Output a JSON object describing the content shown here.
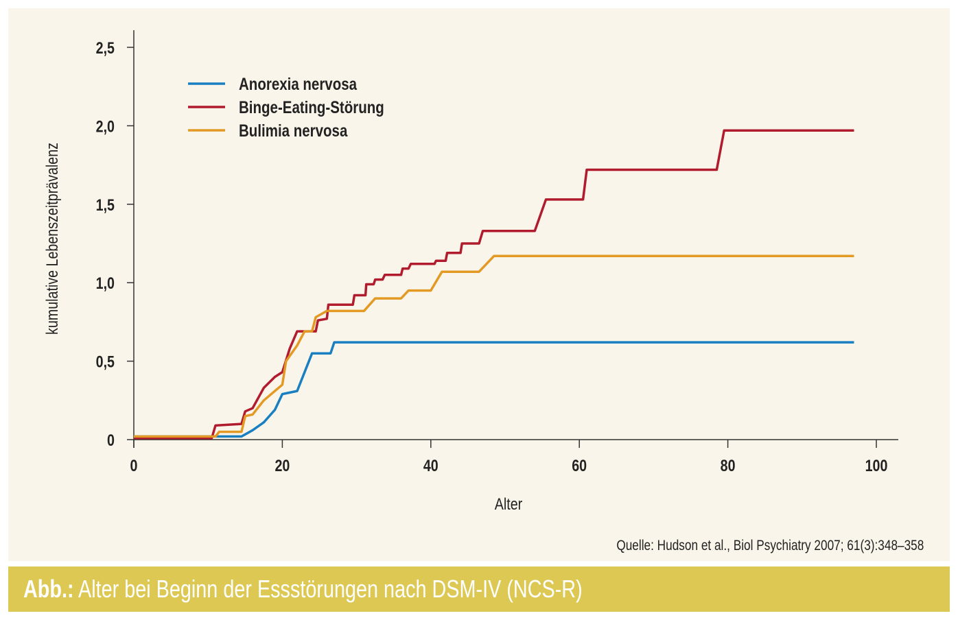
{
  "chart_data": {
    "type": "line",
    "title": "",
    "xlabel": "Alter",
    "ylabel": "kumulative Lebenszeitprävalenz",
    "xlim": [
      0,
      100
    ],
    "ylim": [
      0,
      2.5
    ],
    "x_ticks": [
      0,
      20,
      40,
      60,
      80,
      100
    ],
    "x_tick_labels": [
      "0",
      "20",
      "40",
      "60",
      "80",
      "100"
    ],
    "y_ticks": [
      0,
      0.5,
      1.0,
      1.5,
      2.0,
      2.5
    ],
    "y_tick_labels": [
      "0",
      "0,5",
      "1,0",
      "1,5",
      "2,0",
      "2,5"
    ],
    "legend_position": "top-left",
    "series": [
      {
        "name": "Anorexia nervosa",
        "color": "#1a7fc1",
        "points": [
          [
            0,
            0.02
          ],
          [
            11,
            0.02
          ],
          [
            11.5,
            0.02
          ],
          [
            14.5,
            0.02
          ],
          [
            16,
            0.06
          ],
          [
            17.5,
            0.11
          ],
          [
            19,
            0.19
          ],
          [
            20,
            0.29
          ],
          [
            22,
            0.31
          ],
          [
            24,
            0.55
          ],
          [
            26.5,
            0.55
          ],
          [
            27,
            0.62
          ],
          [
            97,
            0.62
          ]
        ]
      },
      {
        "name": "Binge-Eating-Störung",
        "color": "#b01c2e",
        "points": [
          [
            0,
            0.01
          ],
          [
            10.5,
            0.01
          ],
          [
            11,
            0.09
          ],
          [
            14.5,
            0.1
          ],
          [
            15,
            0.18
          ],
          [
            16,
            0.2
          ],
          [
            17.5,
            0.33
          ],
          [
            19,
            0.4
          ],
          [
            20,
            0.43
          ],
          [
            21,
            0.58
          ],
          [
            22,
            0.69
          ],
          [
            24.5,
            0.69
          ],
          [
            24.8,
            0.76
          ],
          [
            26,
            0.77
          ],
          [
            26.2,
            0.86
          ],
          [
            29.5,
            0.86
          ],
          [
            29.7,
            0.92
          ],
          [
            31.2,
            0.92
          ],
          [
            31.3,
            0.99
          ],
          [
            32.3,
            0.99
          ],
          [
            32.5,
            1.02
          ],
          [
            33.5,
            1.02
          ],
          [
            33.8,
            1.05
          ],
          [
            36,
            1.05
          ],
          [
            36.2,
            1.09
          ],
          [
            37,
            1.09
          ],
          [
            37.3,
            1.12
          ],
          [
            40.5,
            1.12
          ],
          [
            40.7,
            1.14
          ],
          [
            42,
            1.14
          ],
          [
            42.2,
            1.19
          ],
          [
            44,
            1.19
          ],
          [
            44.2,
            1.25
          ],
          [
            46.5,
            1.25
          ],
          [
            47,
            1.33
          ],
          [
            54,
            1.33
          ],
          [
            55.5,
            1.53
          ],
          [
            60.5,
            1.53
          ],
          [
            61,
            1.72
          ],
          [
            78.5,
            1.72
          ],
          [
            79.5,
            1.97
          ],
          [
            97,
            1.97
          ]
        ]
      },
      {
        "name": "Bulimia nervosa",
        "color": "#e29a25",
        "points": [
          [
            0,
            0.02
          ],
          [
            11,
            0.02
          ],
          [
            11.5,
            0.05
          ],
          [
            14.5,
            0.05
          ],
          [
            15,
            0.15
          ],
          [
            16,
            0.16
          ],
          [
            17.5,
            0.25
          ],
          [
            19,
            0.31
          ],
          [
            20,
            0.35
          ],
          [
            20.5,
            0.5
          ],
          [
            22,
            0.6
          ],
          [
            23,
            0.69
          ],
          [
            24,
            0.69
          ],
          [
            24.5,
            0.78
          ],
          [
            26,
            0.82
          ],
          [
            31,
            0.82
          ],
          [
            32.5,
            0.9
          ],
          [
            36,
            0.9
          ],
          [
            37,
            0.95
          ],
          [
            40,
            0.95
          ],
          [
            41.5,
            1.07
          ],
          [
            46.5,
            1.07
          ],
          [
            48.5,
            1.17
          ],
          [
            97,
            1.17
          ]
        ]
      }
    ]
  },
  "source": "Quelle: Hudson et al., Biol Psychiatry 2007; 61(3):348–358",
  "caption": {
    "prefix": "Abb.:",
    "text": "Alter bei Beginn der Essstörungen nach DSM-IV (NCS-R)"
  }
}
